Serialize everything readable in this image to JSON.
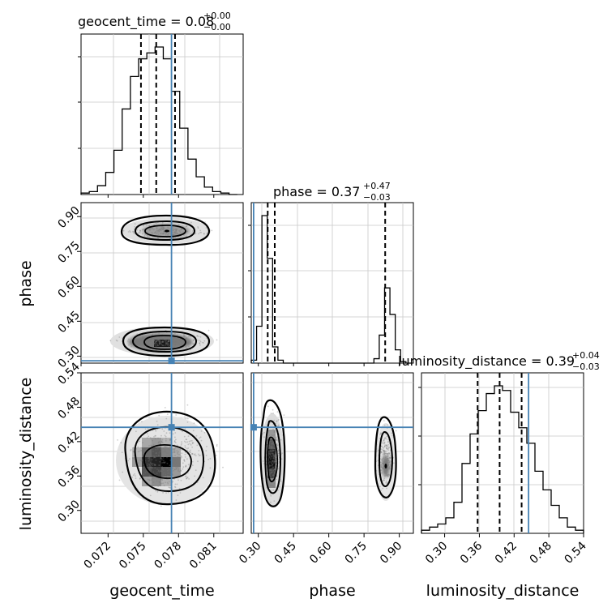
{
  "chart_data": {
    "type": "corner",
    "truth_color": "#4682b4",
    "parameters": [
      {
        "name": "geocent_time",
        "truth": 0.0774,
        "median": 0.0761,
        "q16": 0.0748,
        "q84": 0.0777,
        "title_label": "geocent_time = 0.08",
        "err_plus": "+0.00",
        "err_minus": "−0.00",
        "ticks": [
          0.072,
          0.075,
          0.078,
          0.081
        ],
        "tick_labels": [
          "0.072",
          "0.075",
          "0.078",
          "0.081"
        ],
        "range": [
          0.0697,
          0.0835
        ],
        "axis_label": "geocent_time"
      },
      {
        "name": "phase",
        "truth": 0.28,
        "median": 0.37,
        "q16": 0.34,
        "q84": 0.84,
        "title_label": "phase = 0.37",
        "err_plus": "+0.47",
        "err_minus": "−0.03",
        "ticks": [
          0.3,
          0.45,
          0.6,
          0.75,
          0.9
        ],
        "tick_labels": [
          "0.30",
          "0.45",
          "0.60",
          "0.75",
          "0.90"
        ],
        "range": [
          0.27,
          0.96
        ],
        "axis_label": "phase"
      },
      {
        "name": "luminosity_distance",
        "truth": 0.445,
        "median": 0.395,
        "q16": 0.357,
        "q84": 0.433,
        "title_label": "luminosity_distance = 0.39",
        "err_plus": "+0.04",
        "err_minus": "−0.03",
        "ticks": [
          0.3,
          0.36,
          0.42,
          0.48,
          0.54
        ],
        "tick_labels": [
          "0.30",
          "0.36",
          "0.42",
          "0.48",
          "0.54"
        ],
        "range": [
          0.26,
          0.54
        ],
        "axis_label": "luminosity_distance"
      }
    ],
    "histograms": [
      {
        "param": "geocent_time",
        "bin_edges": [
          0.0697,
          0.0704,
          0.0711,
          0.0718,
          0.0725,
          0.0732,
          0.0739,
          0.0746,
          0.0753,
          0.076,
          0.0767,
          0.0774,
          0.0781,
          0.0788,
          0.0795,
          0.0802,
          0.0809,
          0.0816,
          0.0823,
          0.083
        ],
        "counts": [
          1,
          2,
          6,
          15,
          30,
          58,
          80,
          92,
          96,
          100,
          92,
          70,
          45,
          24,
          12,
          5,
          2,
          1,
          0
        ]
      },
      {
        "param": "phase",
        "bin_edges": [
          0.27,
          0.2927,
          0.3154,
          0.3381,
          0.3608,
          0.3835,
          0.4062,
          0.4289,
          0.4516,
          0.4743,
          0.497,
          0.5197,
          0.5424,
          0.5651,
          0.5878,
          0.6105,
          0.6332,
          0.6559,
          0.6786,
          0.7013,
          0.724,
          0.7467,
          0.7694,
          0.7921,
          0.8148,
          0.8375,
          0.8602,
          0.8829,
          0.9056,
          0.9283,
          0.951
        ],
        "counts": [
          2,
          25,
          100,
          71,
          11,
          2,
          0,
          0,
          0,
          0,
          0,
          0,
          0,
          0,
          0,
          0,
          0,
          0,
          0,
          0,
          0,
          0,
          0,
          3,
          19,
          51,
          33,
          9,
          1,
          0
        ]
      },
      {
        "param": "luminosity_distance",
        "bin_edges": [
          0.26,
          0.274,
          0.288,
          0.302,
          0.316,
          0.33,
          0.344,
          0.358,
          0.372,
          0.386,
          0.4,
          0.414,
          0.428,
          0.442,
          0.456,
          0.47,
          0.484,
          0.498,
          0.512,
          0.526,
          0.54
        ],
        "counts": [
          2,
          4,
          6,
          10,
          20,
          45,
          64,
          79,
          90,
          95,
          92,
          78,
          68,
          58,
          40,
          28,
          18,
          10,
          4,
          2
        ]
      }
    ]
  }
}
